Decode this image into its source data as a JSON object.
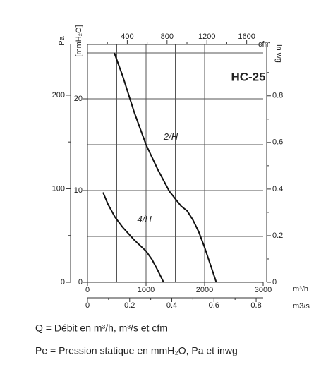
{
  "chart_data": {
    "type": "line",
    "title": "HC-25",
    "x_label": "m³/h",
    "y_label": "[mmH₂O]",
    "xlim": [
      0,
      3000
    ],
    "xticks": [
      0,
      1000,
      2000,
      3000
    ],
    "ylim": [
      0,
      25
    ],
    "yticks": [
      0,
      10,
      20
    ],
    "xgrid": [
      500,
      1000,
      1500,
      2000,
      2500
    ],
    "ygrid": [
      5,
      10,
      15,
      20,
      25
    ],
    "grid": true,
    "color": "#111111",
    "series": [
      {
        "name": "2/H",
        "x": [
          458,
          600,
          800,
          1000,
          1200,
          1400,
          1600,
          1700,
          1800,
          1900,
          2000,
          2100,
          2200
        ],
        "values": [
          25,
          22.5,
          18.5,
          15,
          12.3,
          9.9,
          8.3,
          7.8,
          6.8,
          5.5,
          3.8,
          1.9,
          0
        ]
      },
      {
        "name": "4/H",
        "x": [
          265,
          350,
          470,
          600,
          800,
          1000,
          1100,
          1200,
          1300
        ],
        "values": [
          9.8,
          8.5,
          7.1,
          6.0,
          4.6,
          3.4,
          2.5,
          1.3,
          0
        ]
      }
    ],
    "pa_axis": {
      "label": "Pa",
      "lim": [
        0,
        245.2
      ],
      "ticks": [
        0,
        100,
        200
      ],
      "minor": [
        50,
        150
      ]
    },
    "inwg_axis": {
      "label": "in wg",
      "lim": [
        0,
        0.984
      ],
      "ticks": [
        0,
        0.2,
        0.4,
        0.6,
        0.8
      ],
      "minor": [
        0.1,
        0.3,
        0.5,
        0.7,
        0.9
      ]
    },
    "cfm_axis": {
      "label": "cfm",
      "lim": [
        0,
        1765.7
      ],
      "ticks": [
        400,
        800,
        1200,
        1600
      ],
      "minor": [
        200,
        600,
        1000,
        1400
      ]
    },
    "m3s_axis": {
      "label": "m3/s",
      "lim": [
        0,
        0.8333
      ],
      "ticks": [
        0,
        0.2,
        0.4,
        0.6,
        0.8
      ],
      "minor": [
        0.1,
        0.3,
        0.5,
        0.7
      ]
    },
    "notes": [
      "Q = Débit en m³/h, m³/s et cfm",
      "Pe = Pression statique en mmH₂O, Pa et inwg"
    ]
  }
}
